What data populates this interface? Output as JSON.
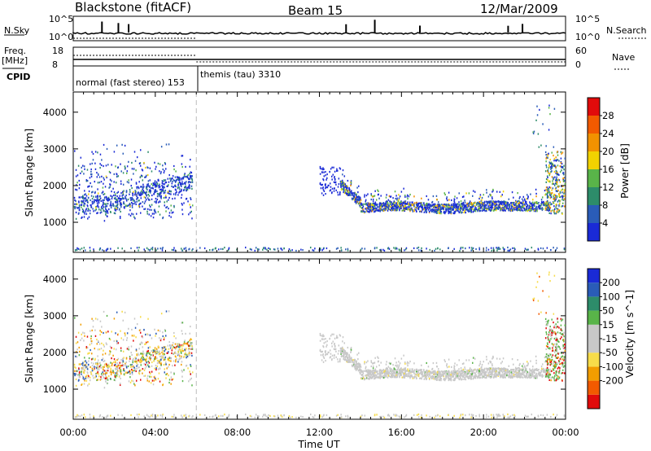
{
  "header": {
    "station": "Blackstone (fitACF)",
    "beam": "Beam 15",
    "date": "12/Mar/2009"
  },
  "panels": {
    "nsky_label": "N.Sky",
    "nsky_ticks": [
      "10^5",
      "10^0"
    ],
    "nsearch_label": "N.Search",
    "nsearch_ticks": [
      "10^5",
      "10^0"
    ],
    "freq_label": "Freq.",
    "freq_unit": "[MHz]",
    "freq_ticks": [
      "18",
      "8"
    ],
    "nave_label": "Nave",
    "nave_ticks": [
      "60",
      "0"
    ],
    "cpid_label": "CPID",
    "cpid_segments": [
      "normal (fast stereo) 153",
      "themis (tau) 3310"
    ]
  },
  "colors": {
    "power_scale": [
      "#1a2ad6",
      "#2a5cb8",
      "#2d8c6a",
      "#59b449",
      "#f2d200",
      "#f29200",
      "#f25a00",
      "#e10b0b"
    ],
    "velocity_scale": [
      "#e10b0b",
      "#f25a00",
      "#f29d00",
      "#f7dc4a",
      "#c8c8c8",
      "#c8c8c8",
      "#59b449",
      "#2d8c6a",
      "#2a5cb8",
      "#1a2ad6"
    ],
    "ground_scatter": "#c8c8c8"
  },
  "chart_data": [
    {
      "type": "heatmap",
      "name_hint": "power",
      "xlabel": "",
      "ylabel": "Slant Range [km]",
      "x_ticks": [
        "00:00",
        "04:00",
        "08:00",
        "12:00",
        "16:00",
        "20:00",
        "00:00"
      ],
      "xlim_hours": [
        0,
        24
      ],
      "ylim_km": [
        180,
        4550
      ],
      "y_ticks": [
        1000,
        2000,
        3000,
        4000
      ],
      "colorbar": {
        "label": "Power [dB]",
        "ticks": [
          4,
          8,
          12,
          16,
          20,
          24,
          28
        ],
        "range": [
          0,
          32
        ]
      },
      "regions": [
        {
          "t_start": 0.0,
          "t_end": 5.8,
          "r_min": 1100,
          "r_max": 3100,
          "note": "dense"
        },
        {
          "t_start": 13.0,
          "t_end": 23.2,
          "r_min": 1150,
          "r_max": 2200,
          "note": "band"
        },
        {
          "t_start": 23.0,
          "t_end": 24.0,
          "r_min": 1200,
          "r_max": 4200,
          "note": "edge"
        }
      ]
    },
    {
      "type": "heatmap",
      "name_hint": "velocity",
      "xlabel": "Time UT",
      "ylabel": "Slant Range [km]",
      "x_ticks": [
        "00:00",
        "04:00",
        "08:00",
        "12:00",
        "16:00",
        "20:00",
        "00:00"
      ],
      "xlim_hours": [
        0,
        24
      ],
      "ylim_km": [
        180,
        4550
      ],
      "y_ticks": [
        1000,
        2000,
        3000,
        4000
      ],
      "colorbar": {
        "label": "Velocity [m s^-1]",
        "ticks": [
          200,
          100,
          50,
          15,
          -15,
          -50,
          -100,
          -200
        ]
      }
    }
  ],
  "cpid_change_hour": 6.0
}
